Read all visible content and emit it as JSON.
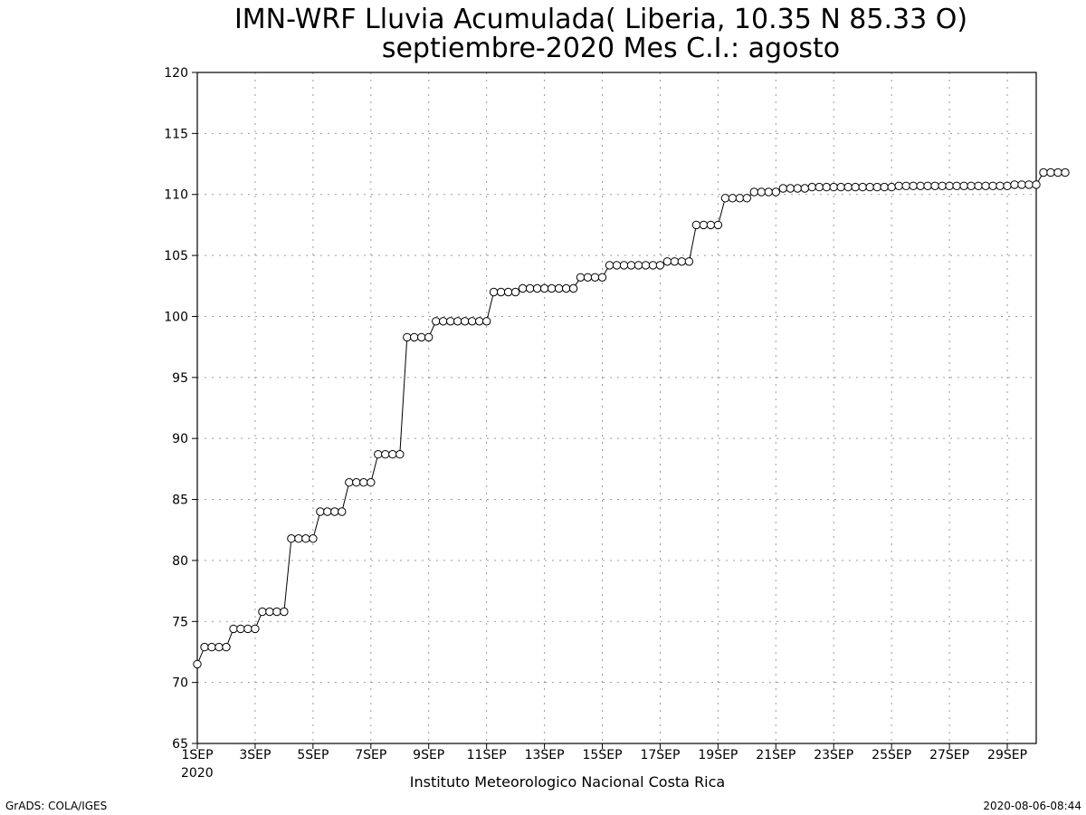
{
  "chart_data": {
    "type": "line",
    "title": "IMN-WRF  Lluvia Acumulada( Liberia, 10.35  N 85.33  O)",
    "subtitle": "septiembre-2020 Mes C.I.: agosto",
    "xlabel": "Instituto Meteorologico Nacional Costa Rica",
    "ylabel": "",
    "ylim": [
      65,
      120
    ],
    "yticks": [
      65,
      70,
      75,
      80,
      85,
      90,
      95,
      100,
      105,
      110,
      115,
      120
    ],
    "xlim": [
      1,
      30
    ],
    "xticks": [
      {
        "day": 1,
        "label": "1SEP"
      },
      {
        "day": 3,
        "label": "3SEP"
      },
      {
        "day": 5,
        "label": "5SEP"
      },
      {
        "day": 7,
        "label": "7SEP"
      },
      {
        "day": 9,
        "label": "9SEP"
      },
      {
        "day": 11,
        "label": "11SEP"
      },
      {
        "day": 13,
        "label": "13SEP"
      },
      {
        "day": 15,
        "label": "15SEP"
      },
      {
        "day": 17,
        "label": "17SEP"
      },
      {
        "day": 19,
        "label": "19SEP"
      },
      {
        "day": 21,
        "label": "21SEP"
      },
      {
        "day": 23,
        "label": "23SEP"
      },
      {
        "day": 25,
        "label": "25SEP"
      },
      {
        "day": 27,
        "label": "27SEP"
      },
      {
        "day": 29,
        "label": "29SEP"
      }
    ],
    "year_label": "2020",
    "grid": true,
    "marker": "open-circle",
    "series": [
      {
        "values": [
          71.5,
          72.9,
          72.9,
          72.9,
          72.9,
          74.4,
          74.4,
          74.4,
          74.4,
          75.8,
          75.8,
          75.8,
          75.8,
          81.8,
          81.8,
          81.8,
          81.8,
          84.0,
          84.0,
          84.0,
          84.0,
          86.4,
          86.4,
          86.4,
          86.4,
          88.7,
          88.7,
          88.7,
          88.7,
          98.3,
          98.3,
          98.3,
          98.3,
          99.6,
          99.6,
          99.6,
          99.6,
          99.6,
          99.6,
          99.6,
          99.6,
          102.0,
          102.0,
          102.0,
          102.0,
          102.3,
          102.3,
          102.3,
          102.3,
          102.3,
          102.3,
          102.3,
          102.3,
          103.2,
          103.2,
          103.2,
          103.2,
          104.2,
          104.2,
          104.2,
          104.2,
          104.2,
          104.2,
          104.2,
          104.2,
          104.5,
          104.5,
          104.5,
          104.5,
          107.5,
          107.5,
          107.5,
          107.5,
          109.7,
          109.7,
          109.7,
          109.7,
          110.2,
          110.2,
          110.2,
          110.2,
          110.5,
          110.5,
          110.5,
          110.5,
          110.6,
          110.6,
          110.6,
          110.6,
          110.6,
          110.6,
          110.6,
          110.6,
          110.6,
          110.6,
          110.6,
          110.6,
          110.7,
          110.7,
          110.7,
          110.7,
          110.7,
          110.7,
          110.7,
          110.7,
          110.7,
          110.7,
          110.7,
          110.7,
          110.7,
          110.7,
          110.7,
          110.7,
          110.8,
          110.8,
          110.8,
          110.8,
          111.8,
          111.8,
          111.8,
          111.8
        ],
        "x_start_day": 1,
        "step_hours": 6
      }
    ]
  },
  "footer": {
    "left": "GrADS: COLA/IGES",
    "right": "2020-08-06-08:44"
  }
}
